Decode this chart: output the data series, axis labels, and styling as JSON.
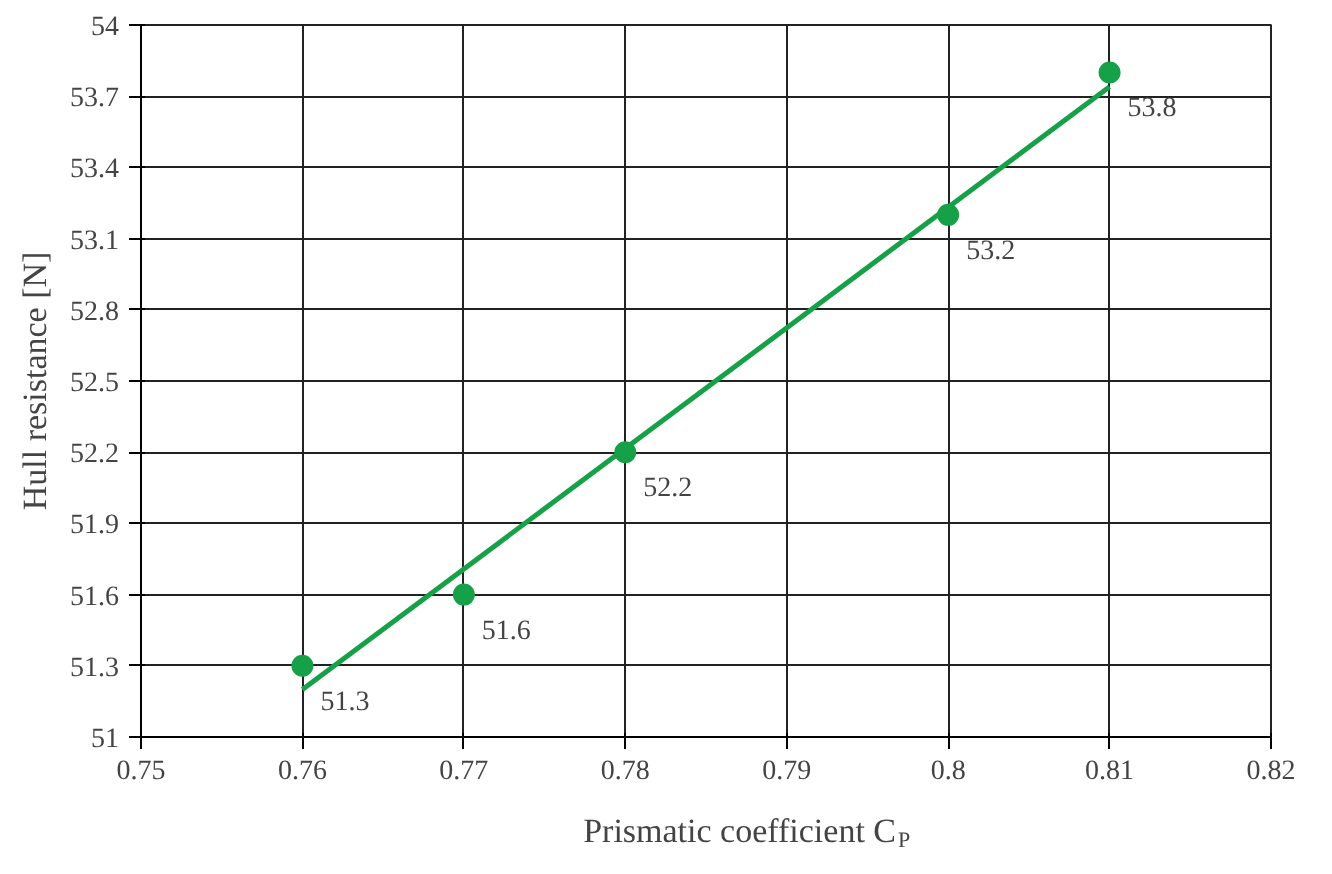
{
  "chart_data": {
    "type": "scatter",
    "xlabel": "Prismatic coefficient C$_{P}$",
    "ylabel": "Hull resistance [N]",
    "xlim": [
      0.75,
      0.82
    ],
    "xticks": [
      0.75,
      0.76,
      0.77,
      0.78,
      0.79,
      0.8,
      0.81,
      0.82
    ],
    "ylim": [
      51,
      54
    ],
    "yticks": [
      51,
      51.3,
      51.6,
      51.9,
      52.2,
      52.5,
      52.8,
      53.1,
      53.4,
      53.7,
      54
    ],
    "grid": true,
    "series": [
      {
        "marker": "circle",
        "color": "#16a047",
        "x": [
          0.76,
          0.77,
          0.78,
          0.8,
          0.81
        ],
        "values": [
          51.3,
          51.6,
          52.2,
          53.2,
          53.8
        ],
        "value_labels": [
          "51.3",
          "51.6",
          "52.2",
          "53.2",
          "53.8"
        ]
      },
      {
        "type": "line",
        "marker": "none",
        "color": "#16a047",
        "x": [
          0.76,
          0.81
        ],
        "values": [
          51.2,
          53.74
        ]
      }
    ]
  }
}
